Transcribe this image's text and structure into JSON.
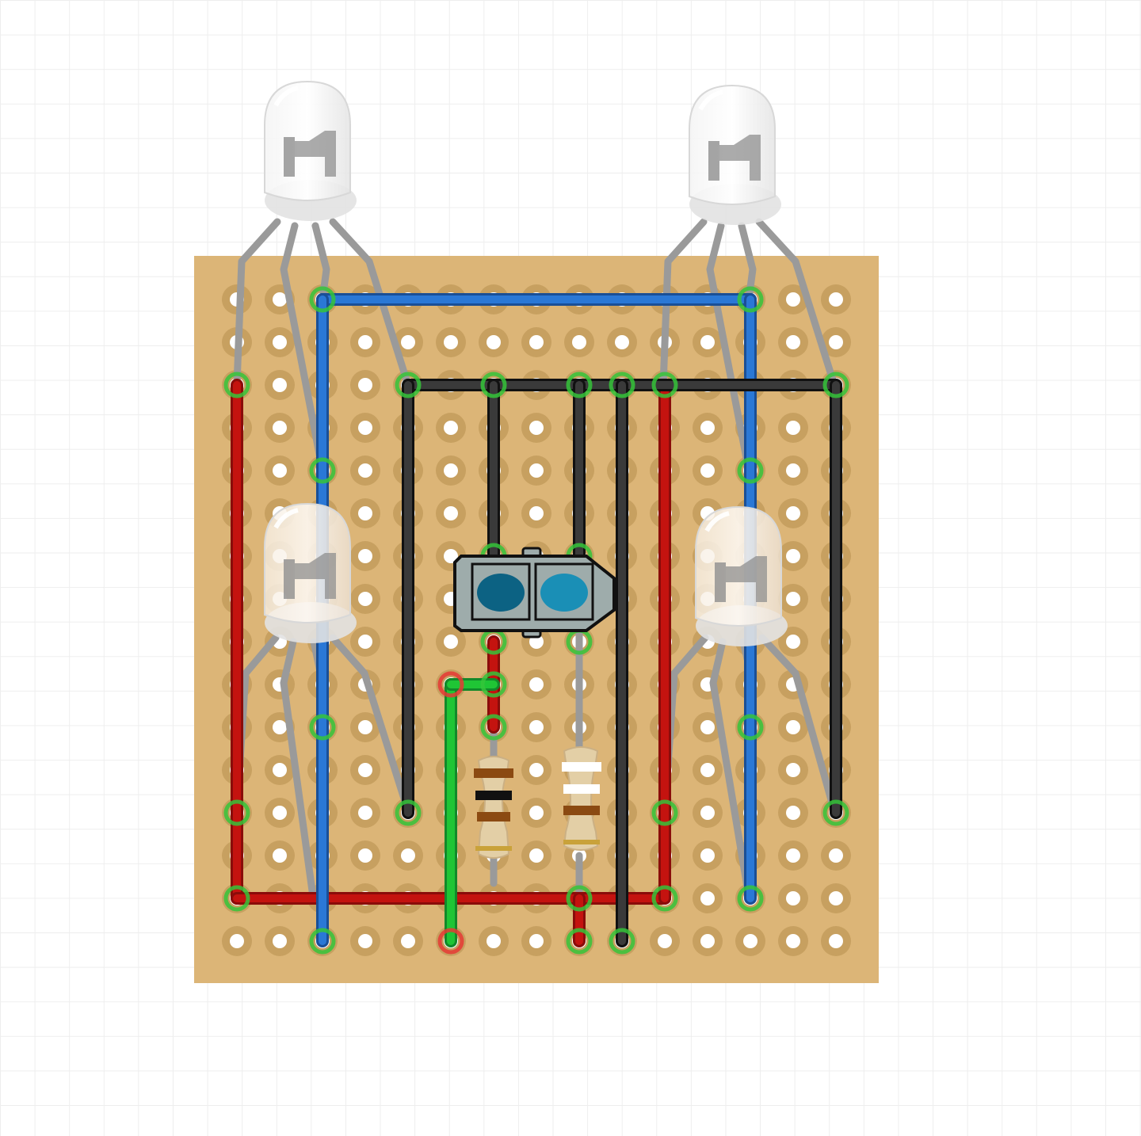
{
  "board": {
    "type": "perfboard",
    "columns": 15,
    "rows": 16,
    "color": "#dcb577",
    "pad_color": "#c7a060",
    "hole_color": "#ffffff"
  },
  "colors": {
    "grid": "#eeeeee",
    "wire_red": "#c4130f",
    "wire_blue": "#2a78d6",
    "wire_black": "#3a3a3a",
    "wire_green": "#1fc535",
    "lead": "#9a9a9a",
    "connection_ok": "#35c43a",
    "connection_unrouted": "#e53935",
    "sensor_body": "#9eacab",
    "sensor_lens_left": "#0c6283",
    "sensor_lens_right": "#1a8fb6"
  },
  "components": {
    "leds": [
      {
        "name": "rgb-led-top-left",
        "kind": "4-pin RGB LED",
        "lens": "clear"
      },
      {
        "name": "rgb-led-top-right",
        "kind": "4-pin RGB LED",
        "lens": "clear"
      },
      {
        "name": "rgb-led-bottom-left",
        "kind": "4-pin RGB LED",
        "lens": "warm-clear"
      },
      {
        "name": "rgb-led-bottom-right",
        "kind": "4-pin RGB LED",
        "lens": "warm-clear"
      }
    ],
    "sensor": {
      "name": "ir-reflective-sensor",
      "kind": "reflective optical sensor"
    },
    "resistors": [
      {
        "name": "resistor-left",
        "bands": [
          "brown",
          "black",
          "brown",
          "gold"
        ]
      },
      {
        "name": "resistor-right",
        "bands": [
          "white",
          "white",
          "brown",
          "gold"
        ]
      }
    ]
  },
  "wires": [
    {
      "color": "red",
      "from": [
        0,
        2
      ],
      "to": [
        0,
        14
      ]
    },
    {
      "color": "red",
      "from": [
        0,
        14
      ],
      "to": [
        10,
        14
      ]
    },
    {
      "color": "red",
      "from": [
        10,
        2
      ],
      "to": [
        10,
        14
      ]
    },
    {
      "color": "red",
      "from": [
        6,
        8
      ],
      "to": [
        6,
        10
      ]
    },
    {
      "color": "red",
      "from": [
        8,
        14
      ],
      "to": [
        8,
        15
      ]
    },
    {
      "color": "blue",
      "from": [
        2,
        0
      ],
      "to": [
        12,
        0
      ]
    },
    {
      "color": "blue",
      "from": [
        2,
        0
      ],
      "to": [
        2,
        15
      ]
    },
    {
      "color": "blue",
      "from": [
        12,
        0
      ],
      "to": [
        12,
        14
      ]
    },
    {
      "color": "black",
      "from": [
        4,
        2
      ],
      "to": [
        14,
        2
      ]
    },
    {
      "color": "black",
      "from": [
        4,
        2
      ],
      "to": [
        4,
        12
      ]
    },
    {
      "color": "black",
      "from": [
        6,
        2
      ],
      "to": [
        6,
        6
      ]
    },
    {
      "color": "black",
      "from": [
        8,
        2
      ],
      "to": [
        8,
        6
      ]
    },
    {
      "color": "black",
      "from": [
        9,
        2
      ],
      "to": [
        9,
        15
      ]
    },
    {
      "color": "black",
      "from": [
        14,
        2
      ],
      "to": [
        14,
        12
      ]
    },
    {
      "color": "green",
      "from": [
        5,
        9
      ],
      "to": [
        5,
        15
      ]
    },
    {
      "color": "green",
      "from": [
        5,
        9
      ],
      "to": [
        6,
        9
      ]
    }
  ]
}
